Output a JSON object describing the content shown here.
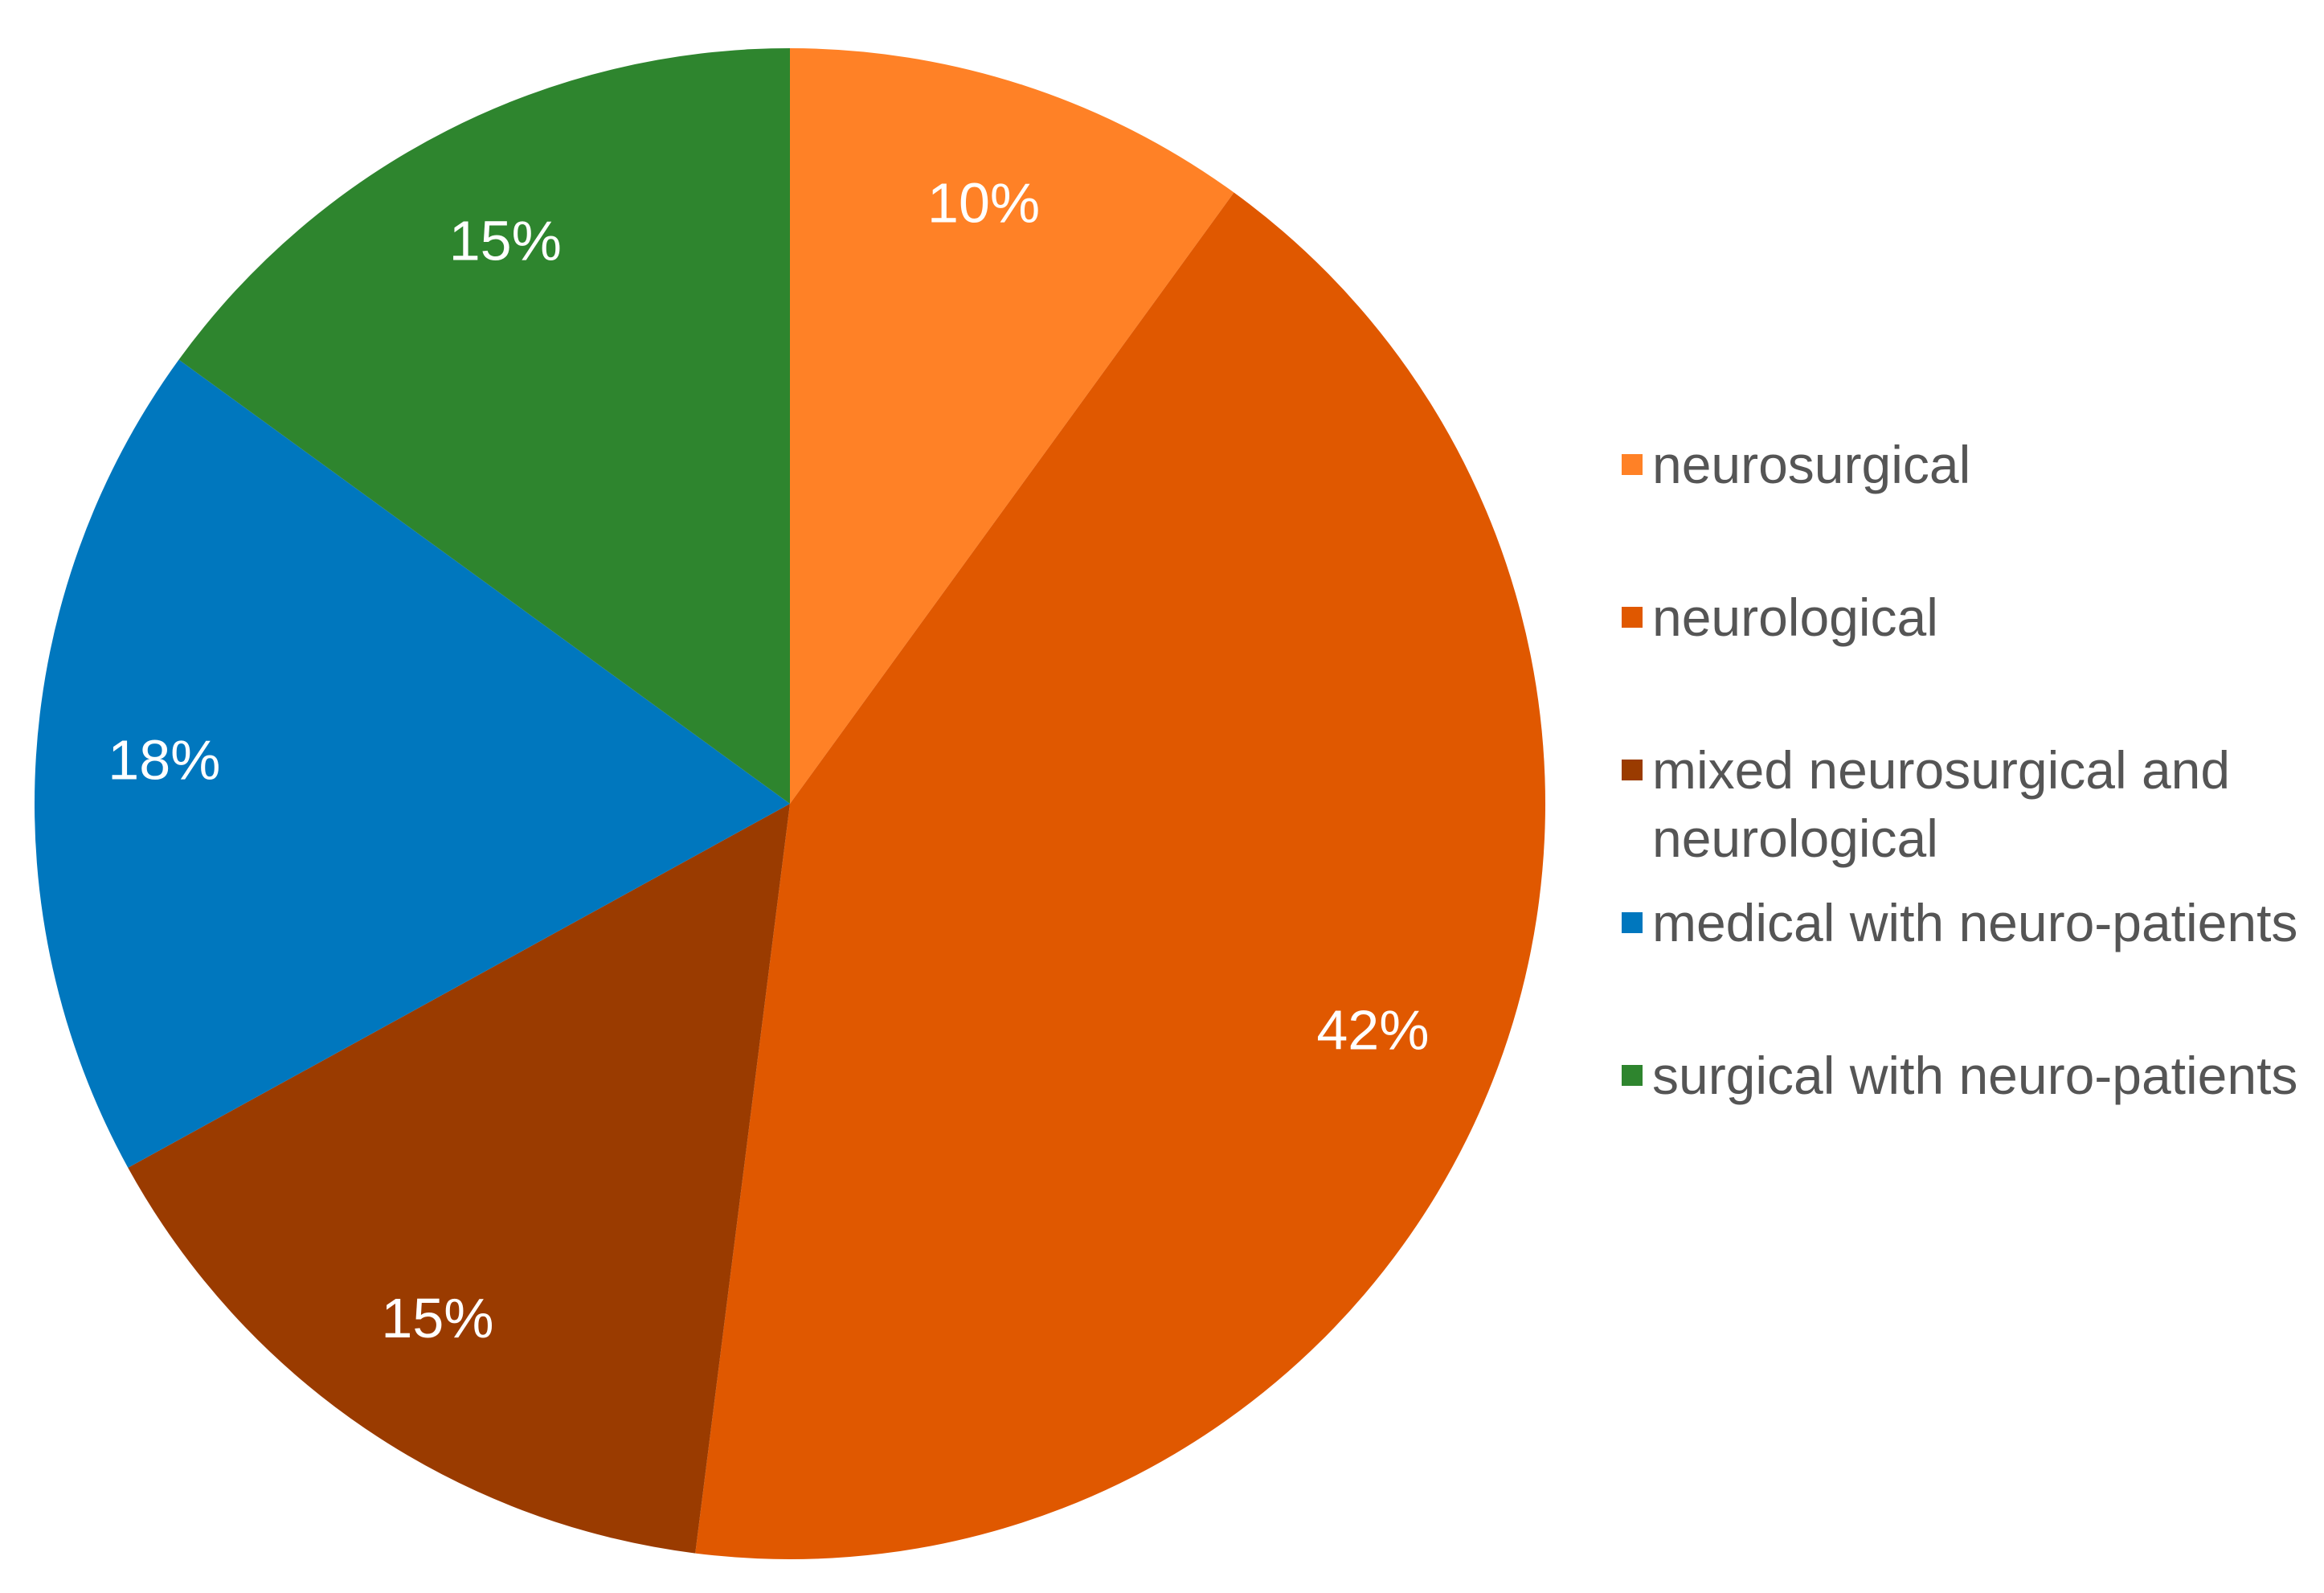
{
  "chart_data": {
    "type": "pie",
    "categories": [
      "neurosurgical",
      "neurological",
      "mixed neurosurgical and neurological",
      "medical with neuro-patients",
      "surgical with neuro-patients"
    ],
    "values": [
      10,
      42,
      15,
      18,
      15
    ],
    "value_labels": [
      "10%",
      "42%",
      "15%",
      "18%",
      "15%"
    ],
    "colors": [
      "#ff8126",
      "#e05800",
      "#9a3b00",
      "#0077be",
      "#2e852e"
    ],
    "legend": "right"
  }
}
